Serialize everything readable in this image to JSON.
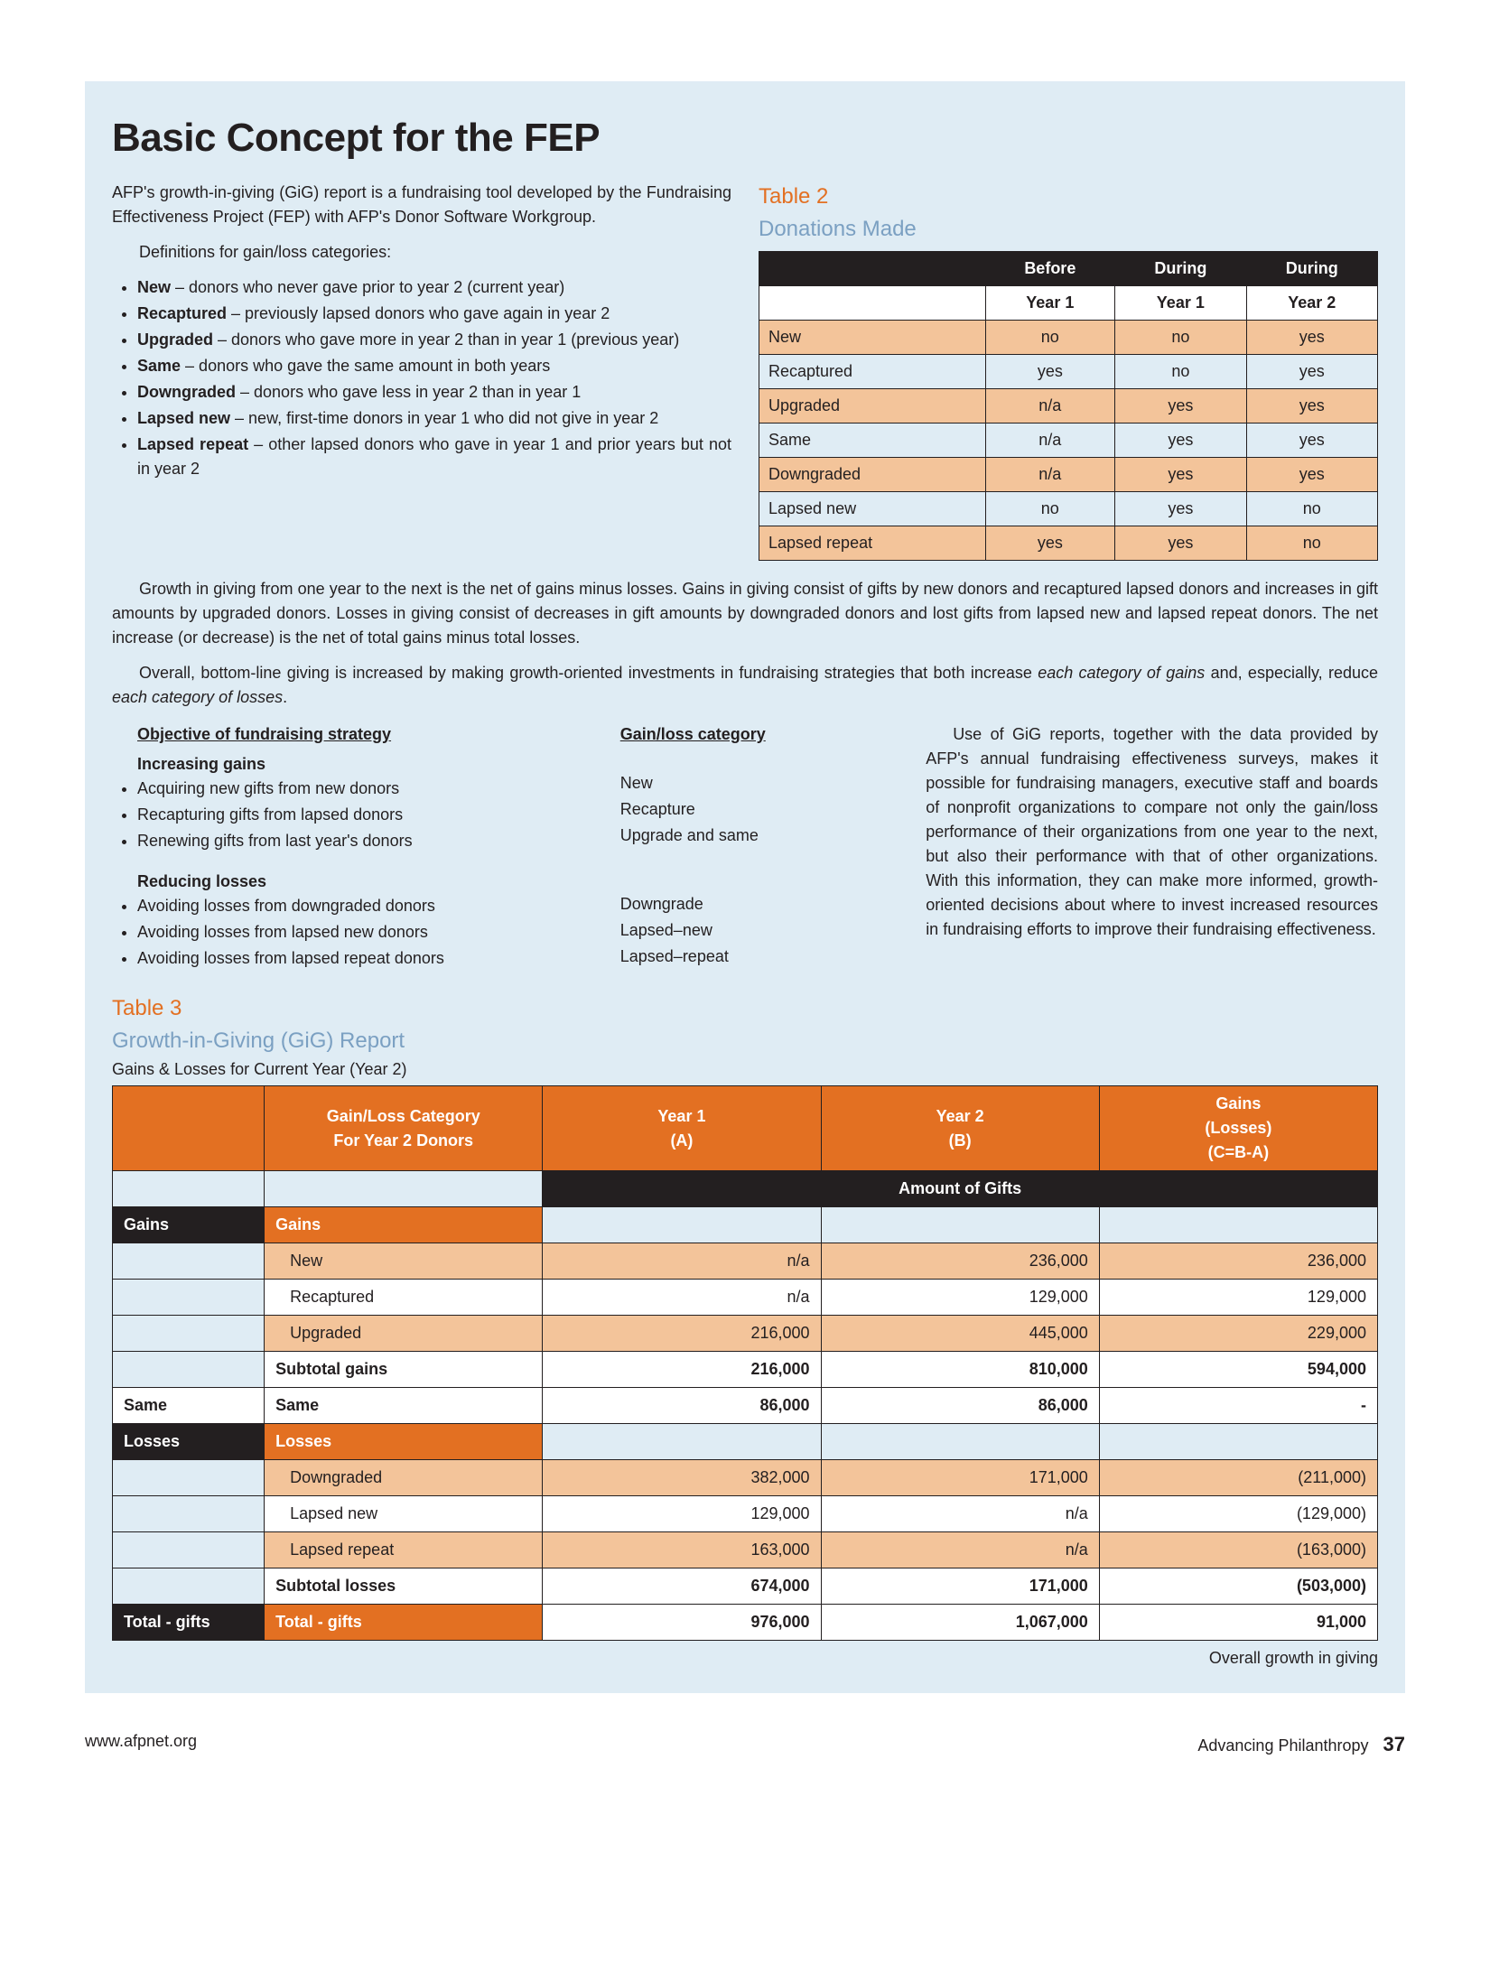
{
  "title": "Basic Concept for the FEP",
  "intro": {
    "p1": "AFP's growth-in-giving (GiG) report is a fundraising tool developed by the Fundraising Effectiveness Project (FEP) with AFP's Donor Software Workgroup.",
    "p2": "Definitions for gain/loss categories:",
    "bullets": [
      {
        "term": "New",
        "def": " – donors who never gave prior to year 2 (current year)"
      },
      {
        "term": "Recaptured",
        "def": " – previously lapsed donors who gave again in year 2"
      },
      {
        "term": "Upgraded",
        "def": " – donors who gave more in year 2 than in year 1 (previous year)"
      },
      {
        "term": "Same",
        "def": " – donors who gave the same amount in both years"
      },
      {
        "term": "Downgraded",
        "def": " – donors who gave less in year 2 than in year 1"
      },
      {
        "term": "Lapsed new",
        "def": " – new, first-time donors in year 1 who did not give in year 2"
      },
      {
        "term": "Lapsed repeat",
        "def": " – other lapsed donors who gave in year 1 and prior years but not in year 2"
      }
    ]
  },
  "table2": {
    "label": "Table 2",
    "title": "Donations Made",
    "headers_top": [
      "",
      "Before",
      "During",
      "During"
    ],
    "headers_sub": [
      "",
      "Year 1",
      "Year 1",
      "Year 2"
    ],
    "rows": [
      {
        "shade": true,
        "cells": [
          "New",
          "no",
          "no",
          "yes"
        ]
      },
      {
        "shade": false,
        "cells": [
          "Recaptured",
          "yes",
          "no",
          "yes"
        ]
      },
      {
        "shade": true,
        "cells": [
          "Upgraded",
          "n/a",
          "yes",
          "yes"
        ]
      },
      {
        "shade": false,
        "cells": [
          "Same",
          "n/a",
          "yes",
          "yes"
        ]
      },
      {
        "shade": true,
        "cells": [
          "Downgraded",
          "n/a",
          "yes",
          "yes"
        ]
      },
      {
        "shade": false,
        "cells": [
          "Lapsed new",
          "no",
          "yes",
          "no"
        ]
      },
      {
        "shade": true,
        "cells": [
          "Lapsed repeat",
          "yes",
          "yes",
          "no"
        ]
      }
    ]
  },
  "mid": {
    "p1": "Growth in giving from one year to the next is the net of gains minus losses. Gains in giving consist of gifts by new donors and recaptured lapsed donors and increases in gift amounts by upgraded donors. Losses in giving consist of decreases in gift amounts by downgraded donors and lost gifts from lapsed new and lapsed repeat donors. The net increase (or decrease) is the net of total gains minus total losses.",
    "p2a": "Overall, bottom-line giving is increased by making growth-oriented investments in fundraising strategies that both increase ",
    "p2b": "each category of gains",
    "p2c": " and, especially, reduce ",
    "p2d": "each category of losses",
    "p2e": "."
  },
  "strategy": {
    "h1": "Objective of fundraising strategy",
    "h2": "Gain/loss category",
    "inc_label": "Increasing gains",
    "inc_rows": [
      {
        "obj": "Acquiring new gifts from new donors",
        "cat": "New"
      },
      {
        "obj": "Recapturing gifts from lapsed donors",
        "cat": "Recapture"
      },
      {
        "obj": "Renewing gifts from last year's donors",
        "cat": "Upgrade and same"
      }
    ],
    "red_label": "Reducing losses",
    "red_rows": [
      {
        "obj": "Avoiding losses from downgraded donors",
        "cat": "Downgrade"
      },
      {
        "obj": "Avoiding losses from lapsed new donors",
        "cat": "Lapsed–new"
      },
      {
        "obj": "Avoiding losses from lapsed repeat donors",
        "cat": "Lapsed–repeat"
      }
    ],
    "right_para": "Use of GiG reports, together with the data provided by AFP's annual fundraising effectiveness surveys, makes it possible for fundraising managers, executive staff and boards of nonprofit organizations to compare not only the gain/loss performance of their organizations from one year to the next, but also their performance with that of other organizations. With this information, they can make more informed, growth-oriented decisions about where to invest increased resources in fundraising efforts to improve their fundraising effectiveness."
  },
  "table3": {
    "label": "Table 3",
    "title": "Growth-in-Giving (GiG) Report",
    "caption": "Gains & Losses for Current Year (Year 2)",
    "headers": [
      "",
      "Gain/Loss Category\nFor Year 2 Donors",
      "Year 1\n(A)",
      "Year 2\n(B)",
      "Gains\n(Losses)\n(C=B-A)"
    ],
    "subhdr": "Amount of Gifts",
    "sections": {
      "gains_side": "Gains",
      "gains_label": "Gains",
      "same_side": "Same",
      "same_label": "Same",
      "losses_side": "Losses",
      "losses_label": "Losses",
      "total_side": "Total - gifts",
      "total_label": "Total - gifts"
    },
    "rows": [
      {
        "shade": true,
        "label": "New",
        "a": "n/a",
        "b": "236,000",
        "c": "236,000"
      },
      {
        "shade": false,
        "label": "Recaptured",
        "a": "n/a",
        "b": "129,000",
        "c": "129,000"
      },
      {
        "shade": true,
        "label": "Upgraded",
        "a": "216,000",
        "b": "445,000",
        "c": "229,000"
      },
      {
        "bold": true,
        "label": "Subtotal gains",
        "a": "216,000",
        "b": "810,000",
        "c": "594,000"
      }
    ],
    "same_row": {
      "a": "86,000",
      "b": "86,000",
      "c": "-"
    },
    "loss_rows": [
      {
        "shade": true,
        "label": "Downgraded",
        "a": "382,000",
        "b": "171,000",
        "c": "(211,000)"
      },
      {
        "shade": false,
        "label": "Lapsed new",
        "a": "129,000",
        "b": "n/a",
        "c": "(129,000)"
      },
      {
        "shade": true,
        "label": "Lapsed repeat",
        "a": "163,000",
        "b": "n/a",
        "c": "(163,000)"
      },
      {
        "bold": true,
        "label": "Subtotal losses",
        "a": "674,000",
        "b": "171,000",
        "c": "(503,000)"
      }
    ],
    "total_row": {
      "a": "976,000",
      "b": "1,067,000",
      "c": "91,000"
    },
    "footnote": "Overall growth in giving"
  },
  "footer": {
    "url": "www.afpnet.org",
    "pub": "Advancing Philanthropy",
    "page": "37"
  },
  "colors": {
    "page_bg": "#ffffff",
    "bluebox_bg": "#dfecf4",
    "orange": "#e37022",
    "blue_text": "#7ba0c2",
    "black": "#231f20",
    "shade": "#f3c49a"
  }
}
